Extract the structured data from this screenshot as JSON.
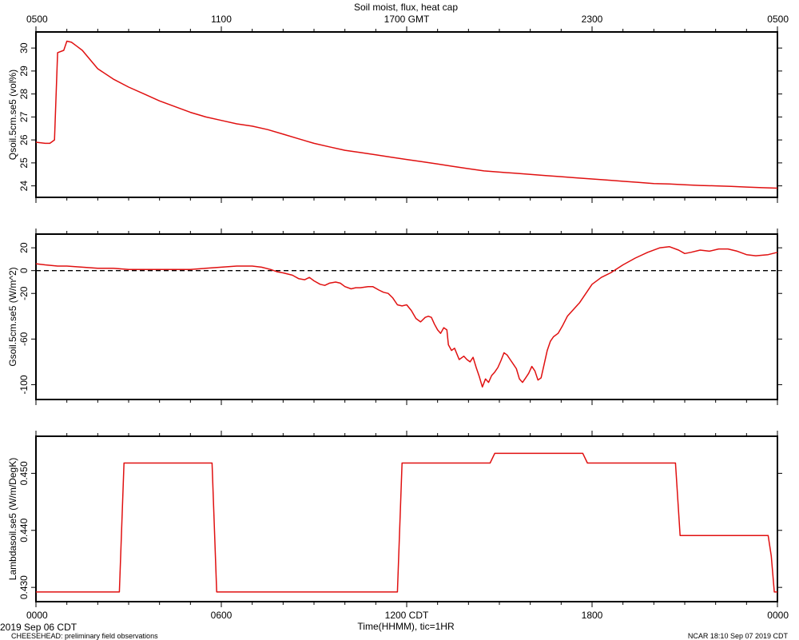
{
  "title": "Soil moist, flux, heat cap",
  "top_axis": {
    "ticks": [
      "0500",
      "1100",
      "1700 GMT",
      "2300",
      "0500"
    ],
    "positions": [
      0,
      6,
      12,
      18,
      24
    ]
  },
  "bottom_axis": {
    "ticks": [
      "0000",
      "0600",
      "1200 CDT",
      "1800",
      "0000"
    ],
    "positions": [
      0,
      6,
      12,
      18,
      24
    ],
    "xlabel": "Time(HHMM), tic=1HR"
  },
  "footer": {
    "date": "2019 Sep 06 CDT",
    "project": "CHEESEHEAD: preliminary field observations",
    "stamp": "NCAR 18:10 Sep 07 2019 CDT"
  },
  "chart_data": [
    {
      "type": "line",
      "ylabel": "Qsoil.5cm.se5 (vol%)",
      "ylim": [
        23.5,
        30.7
      ],
      "yticks": [
        24,
        25,
        26,
        27,
        28,
        29,
        30
      ],
      "ytick_labels": [
        "24",
        "25",
        "26",
        "27",
        "28",
        "29",
        "30"
      ],
      "zero_line": false,
      "color": "#e01010",
      "x": [
        0,
        0.3,
        0.45,
        0.6,
        0.7,
        0.9,
        1.0,
        1.15,
        1.3,
        1.5,
        2.0,
        2.5,
        3.0,
        3.5,
        4.0,
        4.5,
        5.0,
        5.5,
        6.0,
        6.5,
        7.0,
        7.5,
        8.0,
        8.5,
        9.0,
        9.5,
        10.0,
        10.5,
        11.0,
        11.5,
        12.0,
        12.5,
        13.0,
        13.5,
        14.0,
        14.5,
        15.0,
        15.5,
        16.0,
        16.5,
        17.0,
        17.5,
        18.0,
        18.5,
        19.0,
        19.5,
        20.0,
        20.5,
        21.0,
        21.5,
        22.0,
        22.5,
        23.0,
        23.5,
        24.0
      ],
      "y": [
        25.9,
        25.85,
        25.85,
        26.0,
        29.8,
        29.9,
        30.3,
        30.25,
        30.1,
        29.9,
        29.1,
        28.65,
        28.3,
        28.0,
        27.7,
        27.45,
        27.2,
        27.0,
        26.85,
        26.7,
        26.6,
        26.45,
        26.25,
        26.05,
        25.85,
        25.7,
        25.55,
        25.45,
        25.35,
        25.25,
        25.15,
        25.05,
        24.95,
        24.85,
        24.75,
        24.65,
        24.6,
        24.55,
        24.5,
        24.45,
        24.4,
        24.35,
        24.3,
        24.25,
        24.2,
        24.15,
        24.1,
        24.08,
        24.05,
        24.02,
        24.0,
        23.98,
        23.95,
        23.92,
        23.9
      ]
    },
    {
      "type": "line",
      "ylabel": "Gsoil.5cm.se5 (W/m^2)",
      "ylim": [
        -113,
        32
      ],
      "yticks": [
        20,
        0,
        -20,
        -60,
        -100
      ],
      "ytick_labels": [
        "20",
        "0",
        "-20",
        "-60",
        "-100"
      ],
      "zero_line": true,
      "color": "#e01010",
      "x": [
        0,
        0.3,
        0.7,
        1.0,
        1.5,
        2.0,
        2.5,
        3.0,
        3.5,
        4.0,
        4.5,
        5.0,
        5.5,
        6.0,
        6.5,
        7.0,
        7.3,
        7.6,
        7.8,
        8.0,
        8.3,
        8.5,
        8.7,
        8.85,
        9.0,
        9.2,
        9.35,
        9.5,
        9.7,
        9.85,
        10.0,
        10.2,
        10.35,
        10.5,
        10.75,
        10.9,
        11.1,
        11.25,
        11.4,
        11.55,
        11.7,
        11.85,
        12.0,
        12.15,
        12.3,
        12.45,
        12.6,
        12.7,
        12.8,
        12.9,
        13.0,
        13.1,
        13.2,
        13.3,
        13.35,
        13.45,
        13.55,
        13.7,
        13.85,
        13.95,
        14.05,
        14.15,
        14.25,
        14.35,
        14.45,
        14.55,
        14.65,
        14.75,
        14.85,
        14.95,
        15.05,
        15.15,
        15.25,
        15.35,
        15.45,
        15.55,
        15.65,
        15.75,
        15.85,
        15.95,
        16.05,
        16.15,
        16.25,
        16.35,
        16.45,
        16.55,
        16.65,
        16.75,
        16.9,
        17.05,
        17.2,
        17.4,
        17.6,
        17.8,
        18.0,
        18.3,
        18.6,
        19.0,
        19.4,
        19.8,
        20.2,
        20.5,
        20.8,
        21.0,
        21.2,
        21.5,
        21.8,
        22.1,
        22.4,
        22.7,
        23.0,
        23.3,
        23.7,
        24.0
      ],
      "y": [
        6,
        5,
        4,
        4,
        3,
        2,
        2,
        1,
        1,
        1,
        1,
        1,
        2,
        3,
        4,
        4,
        3,
        1,
        -1,
        -2,
        -4,
        -7,
        -8,
        -6,
        -9,
        -12,
        -13,
        -11,
        -10,
        -11,
        -14,
        -16,
        -15,
        -15,
        -14,
        -14,
        -17,
        -19,
        -20,
        -24,
        -30,
        -31,
        -30,
        -35,
        -42,
        -45,
        -41,
        -40,
        -41,
        -47,
        -52,
        -55,
        -50,
        -52,
        -65,
        -70,
        -68,
        -78,
        -75,
        -78,
        -80,
        -76,
        -85,
        -93,
        -102,
        -95,
        -98,
        -92,
        -89,
        -85,
        -79,
        -72,
        -74,
        -78,
        -82,
        -86,
        -95,
        -98,
        -94,
        -90,
        -84,
        -88,
        -96,
        -94,
        -82,
        -70,
        -62,
        -58,
        -55,
        -48,
        -40,
        -34,
        -28,
        -20,
        -12,
        -6,
        -2,
        5,
        11,
        16,
        20,
        21,
        18,
        15,
        16,
        18,
        17,
        19,
        19,
        17,
        14,
        13,
        14,
        16
      ]
    },
    {
      "type": "line",
      "ylabel": "Lambdasoil.se5 (W/m/DegK)",
      "ylim": [
        0.4275,
        0.4565
      ],
      "yticks": [
        0.45,
        0.44,
        0.43
      ],
      "ytick_labels": [
        "0.450",
        "0.440",
        "0.430"
      ],
      "zero_line": false,
      "color": "#e01010",
      "x": [
        0,
        2.7,
        2.85,
        5.7,
        5.85,
        11.7,
        11.85,
        14.7,
        14.85,
        17.7,
        17.85,
        20.7,
        20.85,
        23.7,
        23.8,
        23.9,
        24.0
      ],
      "y": [
        0.4292,
        0.4292,
        0.4518,
        0.4518,
        0.4292,
        0.4292,
        0.4518,
        0.4518,
        0.4535,
        0.4535,
        0.4518,
        0.4518,
        0.4391,
        0.4391,
        0.4355,
        0.4292,
        0.4292
      ]
    }
  ]
}
